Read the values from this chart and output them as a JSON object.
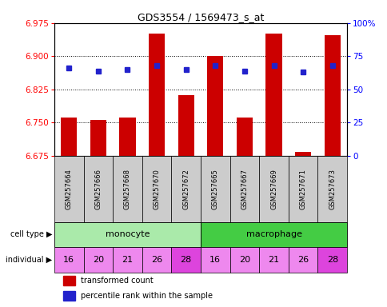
{
  "title": "GDS3554 / 1569473_s_at",
  "samples": [
    "GSM257664",
    "GSM257666",
    "GSM257668",
    "GSM257670",
    "GSM257672",
    "GSM257665",
    "GSM257667",
    "GSM257669",
    "GSM257671",
    "GSM257673"
  ],
  "red_values": [
    6.762,
    6.755,
    6.762,
    6.952,
    6.812,
    6.9,
    6.762,
    6.952,
    6.683,
    6.948
  ],
  "blue_values": [
    66,
    64,
    65,
    68,
    65,
    68,
    64,
    68,
    63,
    68
  ],
  "individuals": [
    "16",
    "20",
    "21",
    "26",
    "28",
    "16",
    "20",
    "21",
    "26",
    "28"
  ],
  "ind_colors": [
    "#ee88ee",
    "#ee88ee",
    "#ee88ee",
    "#ee88ee",
    "#dd44dd",
    "#ee88ee",
    "#ee88ee",
    "#ee88ee",
    "#ee88ee",
    "#dd44dd"
  ],
  "ymin": 6.675,
  "ymax": 6.975,
  "yticks": [
    6.675,
    6.75,
    6.825,
    6.9,
    6.975
  ],
  "y2min": 0,
  "y2max": 100,
  "y2ticks": [
    0,
    25,
    50,
    75,
    100
  ],
  "bar_color": "#cc0000",
  "dot_color": "#2222cc",
  "monocyte_color": "#aaeaaa",
  "macrophage_color": "#44cc44",
  "sample_bg_color": "#cccccc",
  "legend_red": "transformed count",
  "legend_blue": "percentile rank within the sample"
}
